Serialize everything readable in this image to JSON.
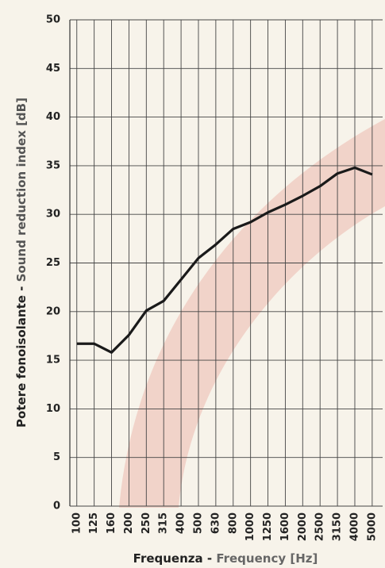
{
  "chart_data": {
    "type": "line",
    "y_label_it": "Potere fonoisolante -",
    "y_label_en": "Sound reduction index [dB]",
    "x_label_it": "Frequenza -",
    "x_label_en": "Frequency [Hz]",
    "categories": [
      "100",
      "125",
      "160",
      "200",
      "250",
      "315",
      "400",
      "500",
      "630",
      "800",
      "1000",
      "1250",
      "1600",
      "2000",
      "2500",
      "3150",
      "4000",
      "5000"
    ],
    "series": [
      {
        "color": "#1a1a1a",
        "values": [
          16.7,
          16.7,
          15.8,
          17.6,
          20.1,
          21.1,
          23.3,
          25.5,
          26.9,
          28.5,
          29.2,
          30.2,
          31.0,
          31.9,
          32.9,
          34.2,
          34.8,
          34.1
        ]
      }
    ],
    "ylim": [
      0,
      50
    ],
    "yticks": [
      0,
      5,
      10,
      15,
      20,
      25,
      30,
      35,
      40,
      45,
      50
    ],
    "grid": true
  }
}
